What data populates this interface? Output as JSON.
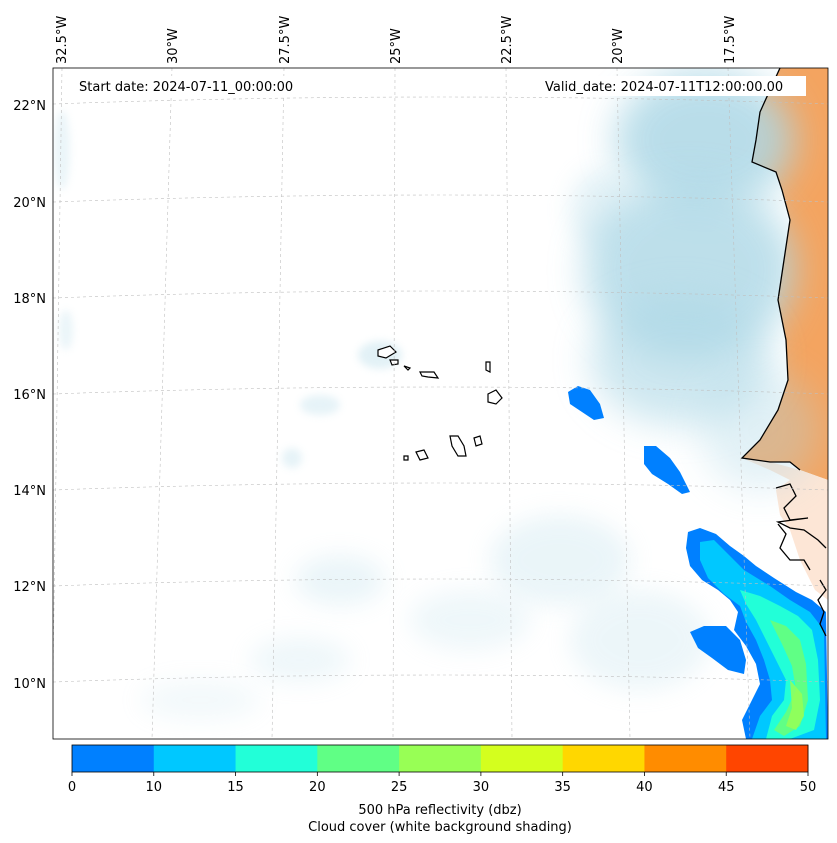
{
  "header": {
    "start_date": "Start date: 2024-07-11_00:00:00",
    "valid_date": "Valid_date: 2024-07-11T12:00:00.00"
  },
  "map": {
    "lon_ticks": [
      "32.5°W",
      "30°W",
      "27.5°W",
      "25°W",
      "22.5°W",
      "20°W",
      "17.5°W"
    ],
    "lat_ticks": [
      "22°N",
      "20°N",
      "18°N",
      "16°N",
      "14°N",
      "12°N",
      "10°N"
    ],
    "colors": {
      "ocean": "#ffffff",
      "land": "#f4a460",
      "cloud": "#add8e6",
      "coast": "#000000"
    }
  },
  "colorbar": {
    "bounds": [
      0,
      10,
      15,
      20,
      25,
      30,
      35,
      40,
      45,
      50
    ],
    "labels": [
      "0",
      "10",
      "15",
      "20",
      "25",
      "30",
      "35",
      "40",
      "45",
      "50"
    ],
    "colors": [
      "#0080ff",
      "#00c8ff",
      "#22ffd8",
      "#60ff85",
      "#98ff55",
      "#d4ff1e",
      "#ffd700",
      "#ff8c00",
      "#ff4500"
    ],
    "label_line1": "500 hPa reflectivity (dbz)",
    "label_line2": "Cloud cover (white background shading)"
  }
}
